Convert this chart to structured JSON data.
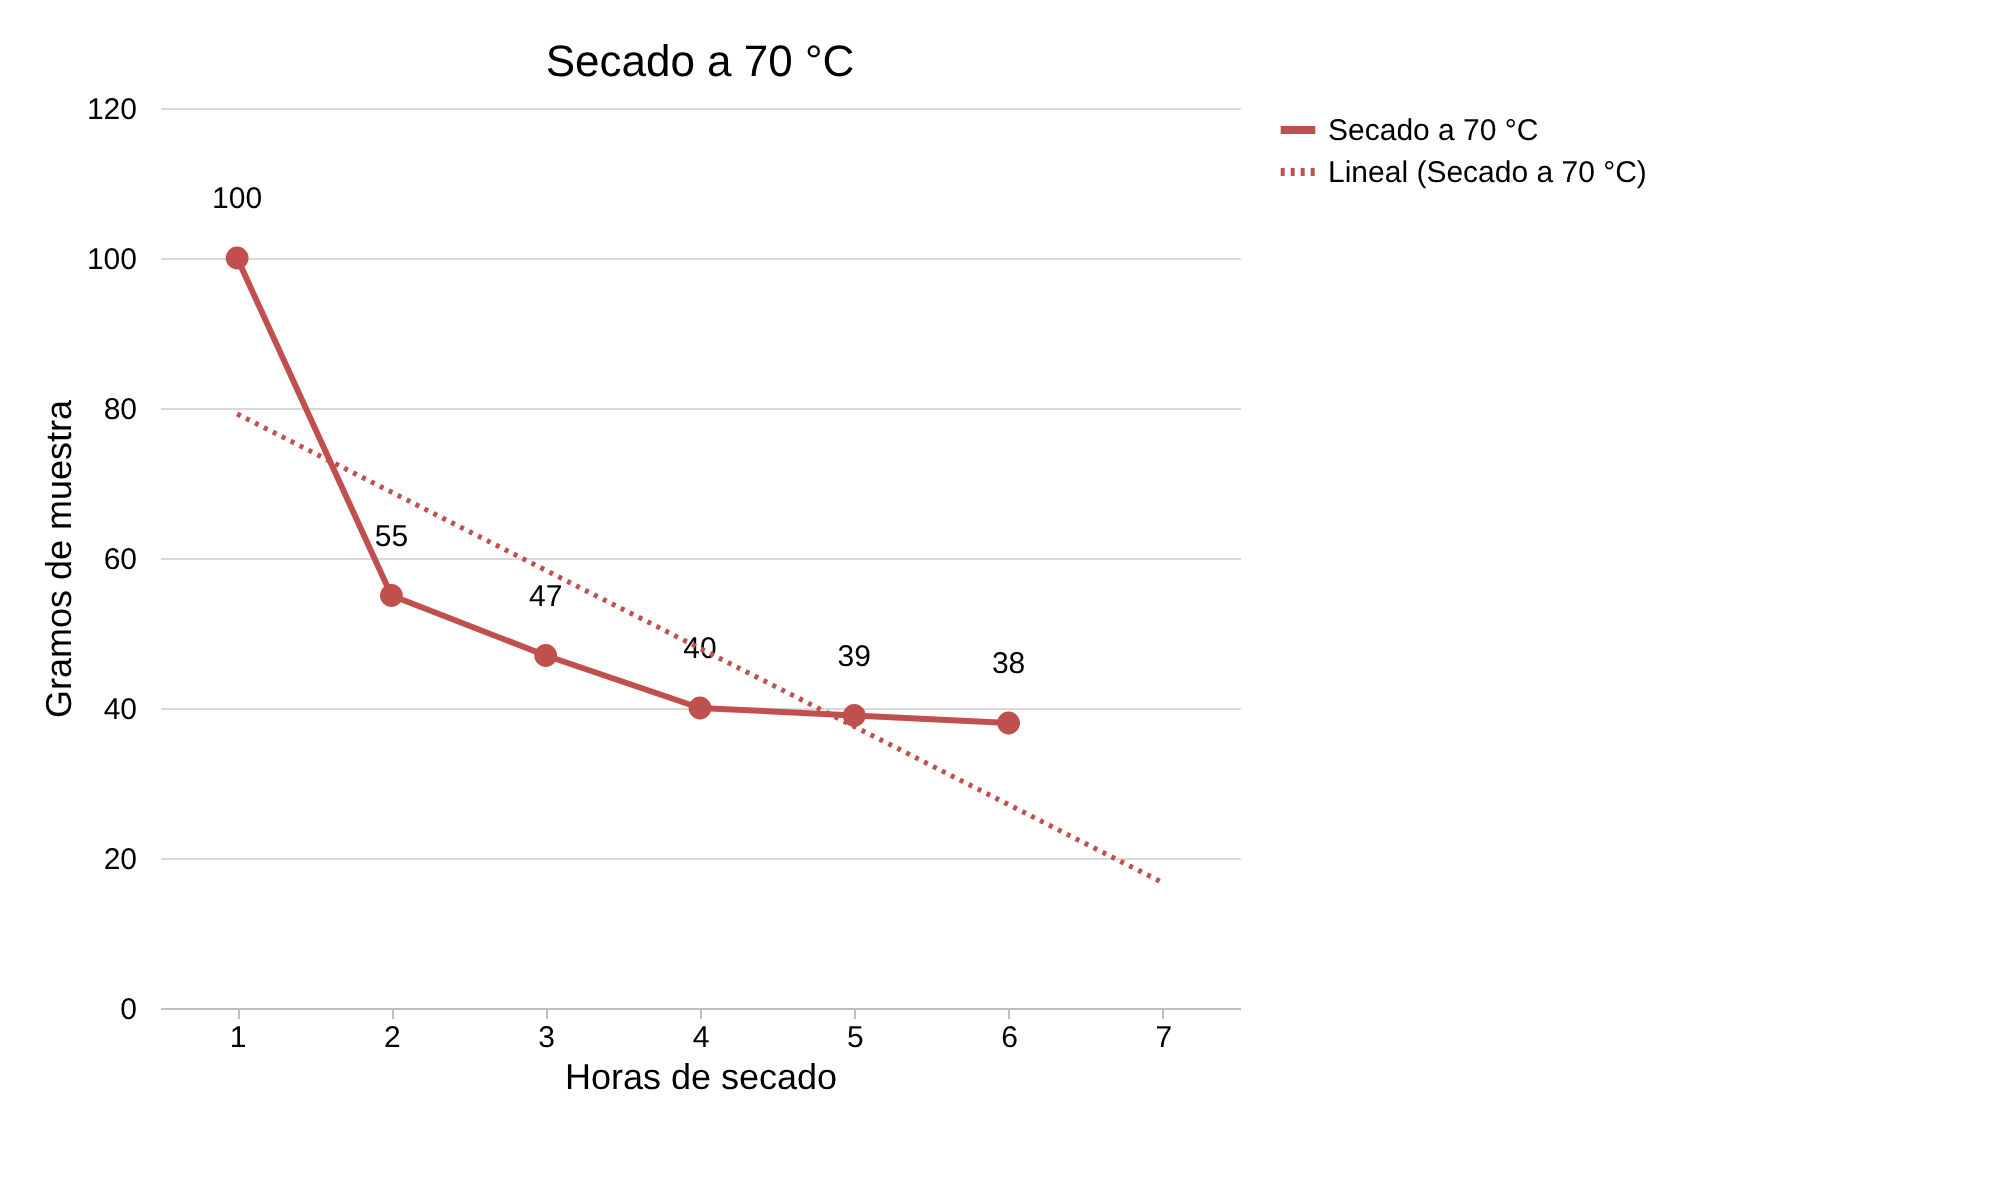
{
  "chart_data": {
    "type": "line",
    "title": "Secado a 70 °C",
    "xlabel": "Horas de secado",
    "ylabel": "Gramos de muestra",
    "x": [
      1,
      2,
      3,
      4,
      5,
      6
    ],
    "series": [
      {
        "name": "Secado a 70 °C",
        "color": "#c0504d",
        "values": [
          100,
          55,
          47,
          40,
          39,
          38
        ],
        "marker": "circle",
        "line_style": "solid",
        "data_labels": true
      },
      {
        "name": "Lineal (Secado a 70 °C)",
        "color": "#c0504d",
        "type": "line",
        "x": [
          1,
          7
        ],
        "values": [
          79.2,
          16.7
        ],
        "marker": "none",
        "line_style": "dotted"
      }
    ],
    "xlim": [
      0.5,
      7.5
    ],
    "xticks": [
      1,
      2,
      3,
      4,
      5,
      6,
      7
    ],
    "ylim": [
      0,
      120
    ],
    "yticks": [
      0,
      20,
      40,
      60,
      80,
      100,
      120
    ],
    "grid": "y",
    "legend": "right"
  }
}
